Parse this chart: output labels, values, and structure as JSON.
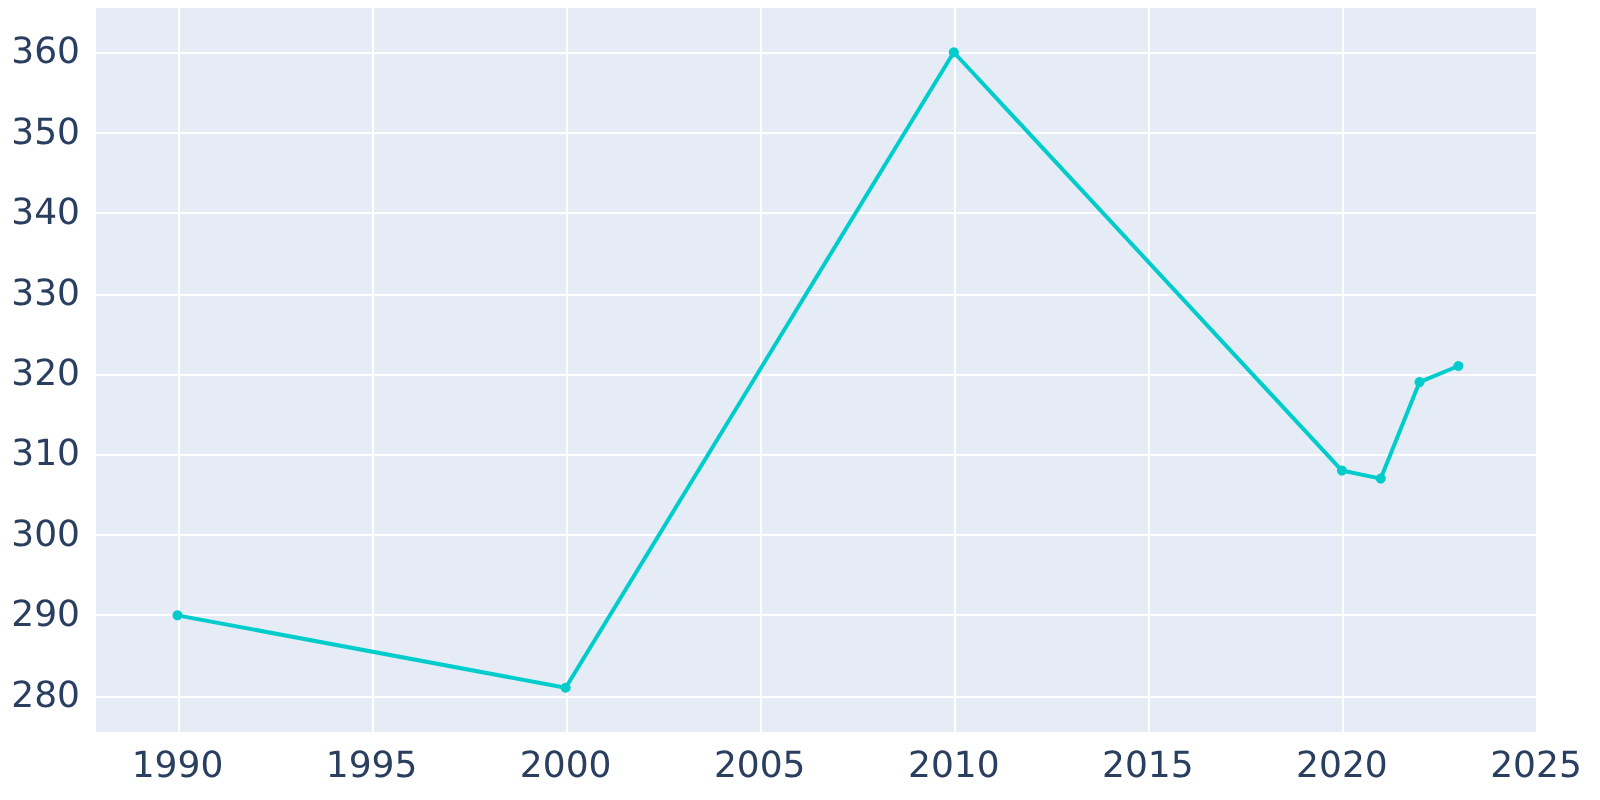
{
  "chart_data": {
    "type": "line",
    "x": [
      1990,
      2000,
      2010,
      2020,
      2021,
      2022,
      2023
    ],
    "values": [
      290,
      281,
      360,
      308,
      307,
      319,
      321
    ],
    "color": "#00cccc",
    "xlim": [
      1987.9,
      2025
    ],
    "ylim": [
      275.5,
      365.5
    ],
    "xticks": [
      1990,
      1995,
      2000,
      2005,
      2010,
      2015,
      2020,
      2025
    ],
    "yticks": [
      280,
      290,
      300,
      310,
      320,
      330,
      340,
      350,
      360
    ],
    "grid": true,
    "marker": "circle",
    "line_style": "solid"
  }
}
